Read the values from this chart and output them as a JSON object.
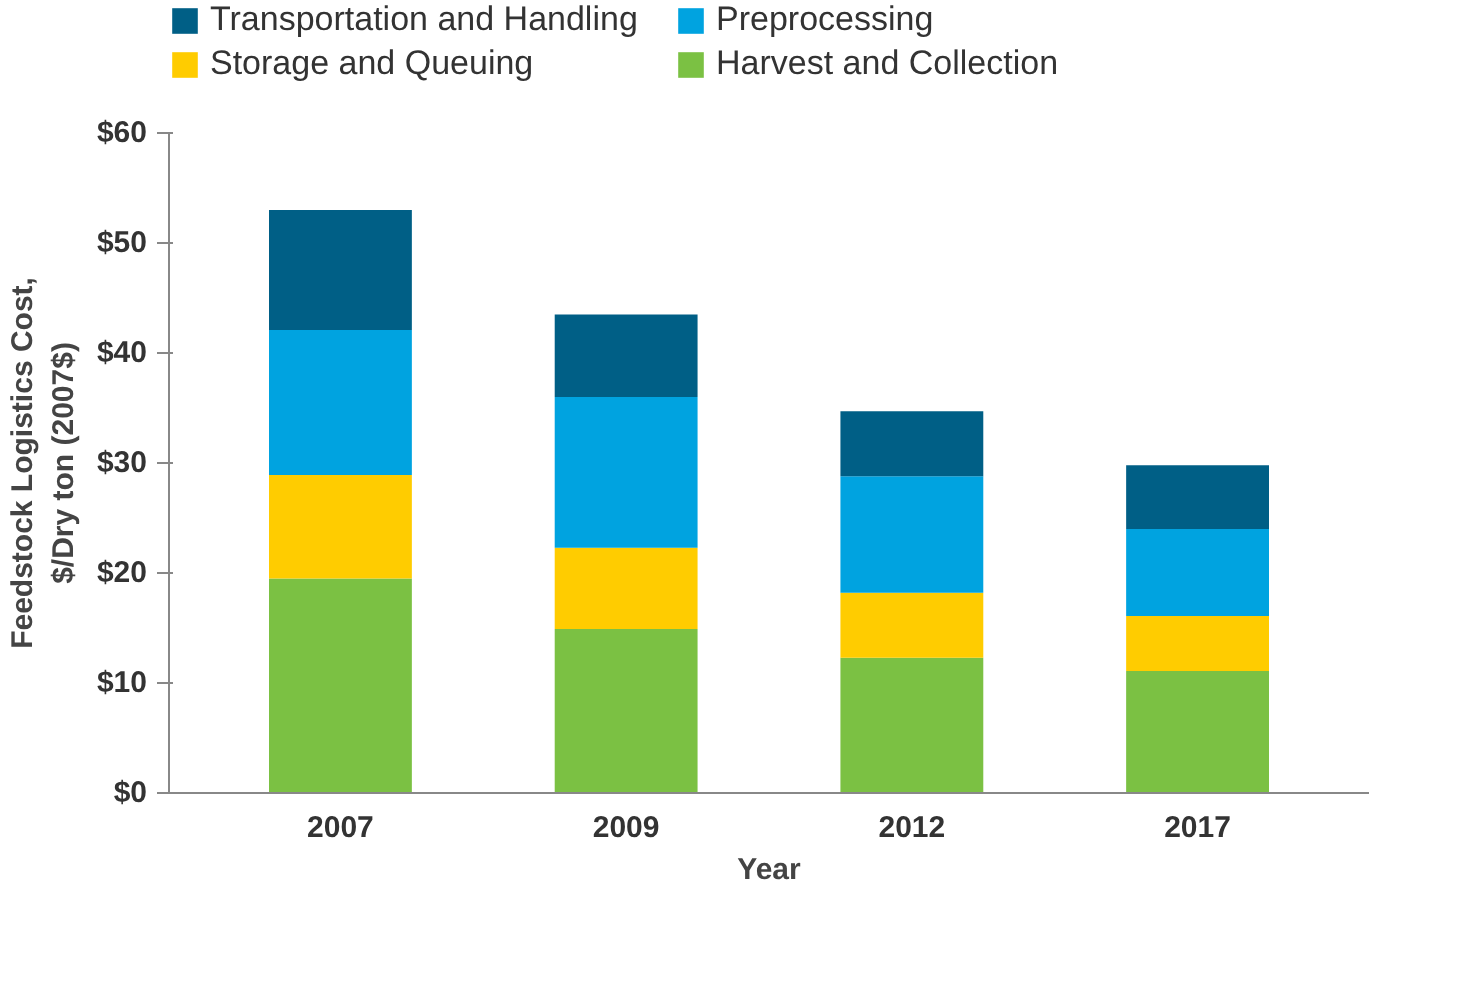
{
  "chart_data": {
    "type": "bar",
    "stacked": true,
    "xlabel": "Year",
    "ylabel": "Feedstock Logistics Cost,\n$/Dry ton (2007$)",
    "categories": [
      "2007",
      "2009",
      "2012",
      "2017"
    ],
    "series": [
      {
        "name": "Harvest and Collection",
        "color": "#7bc143",
        "values": [
          19.5,
          14.9,
          12.3,
          11.1
        ]
      },
      {
        "name": "Storage and Queuing",
        "color": "#ffcc00",
        "values": [
          9.4,
          7.4,
          5.9,
          5.0
        ]
      },
      {
        "name": "Preprocessing",
        "color": "#00a3e0",
        "values": [
          13.2,
          13.7,
          10.6,
          7.9
        ]
      },
      {
        "name": "Transportation and Handling",
        "color": "#005f86",
        "values": [
          10.9,
          7.5,
          5.9,
          5.8
        ]
      }
    ],
    "ylim": [
      0,
      60
    ],
    "yticks": [
      {
        "value": 0,
        "label": "$0"
      },
      {
        "value": 10,
        "label": "$10"
      },
      {
        "value": 20,
        "label": "$20"
      },
      {
        "value": 30,
        "label": "$30"
      },
      {
        "value": 40,
        "label": "$40"
      },
      {
        "value": 50,
        "label": "$50"
      },
      {
        "value": 60,
        "label": "$60"
      }
    ],
    "grid": false,
    "legend": "top"
  }
}
